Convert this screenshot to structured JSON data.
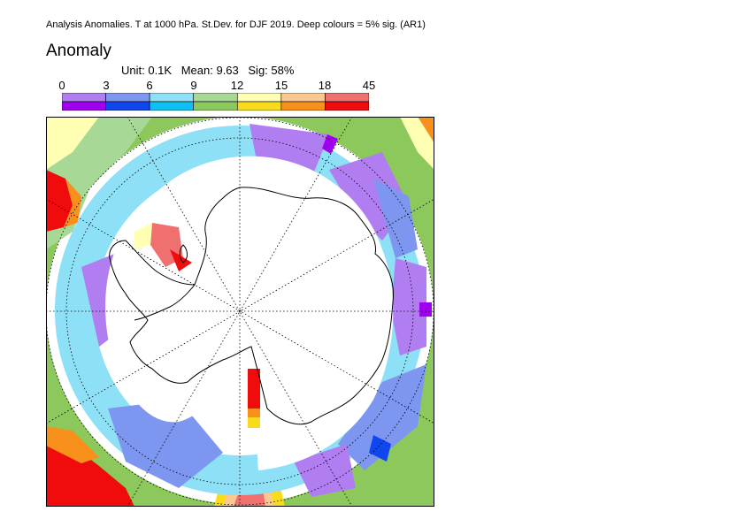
{
  "figure": {
    "title": "Analysis Anomalies. T at 1000 hPa. St.Dev. for DJF 2019.  Deep colours = 5% sig. (AR1)",
    "heading": "Anomaly",
    "stats": {
      "unit": "Unit: 0.1K",
      "mean": "Mean: 9.63",
      "sig": "Sig: 58%"
    }
  },
  "legend": {
    "ticks": [
      "0",
      "3",
      "6",
      "9",
      "12",
      "15",
      "18",
      "45"
    ],
    "bins": [
      {
        "range": "0-3",
        "light": "#b07ef0",
        "deep": "#a000f0"
      },
      {
        "range": "3-6",
        "light": "#7d96f0",
        "deep": "#1046f0"
      },
      {
        "range": "6-9",
        "light": "#8ee0f6",
        "deep": "#10c0f4"
      },
      {
        "range": "9-12",
        "light": "#a8d896",
        "deep": "#8cc85c"
      },
      {
        "range": "12-15",
        "light": "#ffffb4",
        "deep": "#f8dc1c"
      },
      {
        "range": "15-18",
        "light": "#fcc890",
        "deep": "#f8901c"
      },
      {
        "range": "18-45",
        "light": "#f07070",
        "deep": "#f00c0c"
      }
    ]
  },
  "map": {
    "projection": "south polar stereographic",
    "graticule": "dotted",
    "background": "#ffffff",
    "no_data_color": "#ffffff",
    "coastline_color": "#000000"
  }
}
